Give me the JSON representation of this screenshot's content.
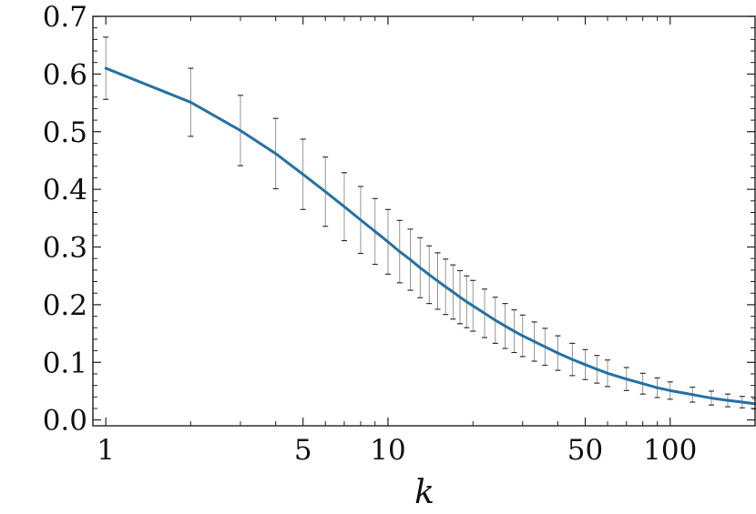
{
  "chart_data": {
    "type": "line",
    "title": "",
    "xlabel": "k",
    "ylabel": "",
    "x_scale": "log",
    "xlim": [
      0.9,
      200
    ],
    "ylim": [
      -0.01,
      0.7
    ],
    "x_ticks": [
      1,
      5,
      10,
      50,
      100
    ],
    "x_tick_labels": [
      "1",
      "5",
      "10",
      "50",
      "100"
    ],
    "y_ticks": [
      0.0,
      0.1,
      0.2,
      0.3,
      0.4,
      0.5,
      0.6,
      0.7
    ],
    "y_tick_labels": [
      "0.0",
      "0.1",
      "0.2",
      "0.3",
      "0.4",
      "0.5",
      "0.6",
      "0.7"
    ],
    "grid": false,
    "legend": "none",
    "line_color": "#2471a8",
    "error_bar_color": "#8a8a8a",
    "series": [
      {
        "x": [
          1,
          2,
          3,
          4,
          5,
          6,
          7,
          8,
          9,
          10,
          11,
          12,
          13,
          14,
          15,
          16,
          17,
          18,
          19,
          20,
          22,
          24,
          26,
          28,
          30,
          33,
          36,
          40,
          45,
          50,
          55,
          60,
          70,
          80,
          90,
          100,
          120,
          140,
          160,
          180,
          200
        ],
        "y": [
          0.61,
          0.551,
          0.502,
          0.462,
          0.426,
          0.396,
          0.37,
          0.347,
          0.327,
          0.309,
          0.292,
          0.278,
          0.264,
          0.252,
          0.241,
          0.231,
          0.222,
          0.213,
          0.205,
          0.198,
          0.185,
          0.173,
          0.163,
          0.154,
          0.146,
          0.136,
          0.127,
          0.116,
          0.105,
          0.096,
          0.088,
          0.081,
          0.071,
          0.063,
          0.056,
          0.051,
          0.044,
          0.038,
          0.034,
          0.031,
          0.028
        ],
        "err": [
          0.054,
          0.059,
          0.061,
          0.061,
          0.061,
          0.06,
          0.059,
          0.058,
          0.057,
          0.056,
          0.054,
          0.053,
          0.052,
          0.05,
          0.049,
          0.048,
          0.047,
          0.046,
          0.045,
          0.044,
          0.042,
          0.04,
          0.039,
          0.037,
          0.036,
          0.034,
          0.032,
          0.03,
          0.028,
          0.026,
          0.024,
          0.023,
          0.02,
          0.018,
          0.017,
          0.015,
          0.013,
          0.012,
          0.011,
          0.01,
          0.009
        ]
      }
    ]
  }
}
